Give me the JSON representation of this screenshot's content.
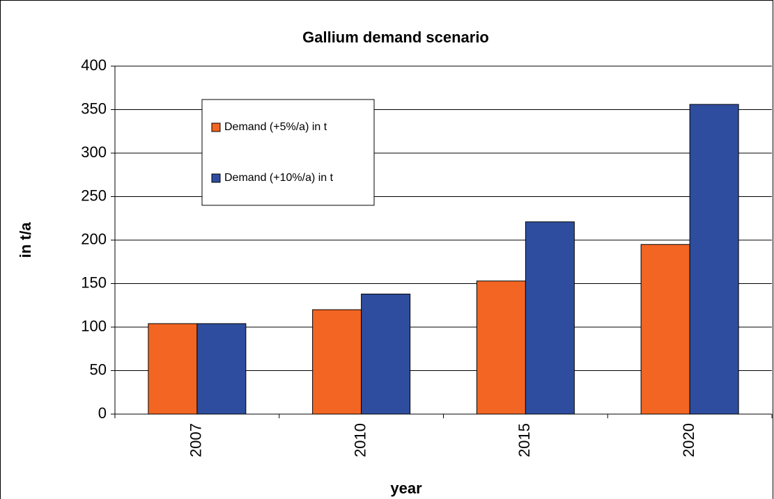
{
  "chart_data": {
    "type": "bar",
    "title": "Gallium demand scenario",
    "x_label": "year",
    "y_label": "in t/a",
    "categories": [
      "2007",
      "2010",
      "2015",
      "2020"
    ],
    "series": [
      {
        "name": "Demand (+5%/a) in t",
        "color": "#f26522",
        "values": [
          104,
          120,
          153,
          195
        ]
      },
      {
        "name": "Demand (+10%/a) in t",
        "color": "#2e4d9e",
        "values": [
          104,
          138,
          221,
          356
        ]
      }
    ],
    "ylim": [
      0,
      400
    ],
    "yticks": [
      0,
      50,
      100,
      150,
      200,
      250,
      300,
      350,
      400
    ],
    "grid": true
  }
}
